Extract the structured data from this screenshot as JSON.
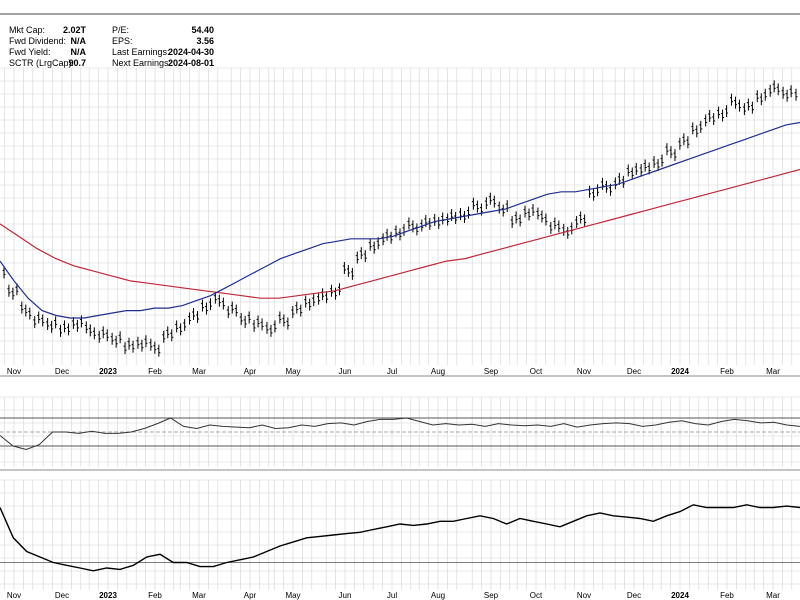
{
  "info": {
    "left": [
      {
        "label": "Mkt Cap:",
        "value": "2.02T"
      },
      {
        "label": "Fwd Dividend:",
        "value": "N/A"
      },
      {
        "label": "Fwd Yield:",
        "value": "N/A"
      },
      {
        "label": "SCTR (LrgCap):",
        "value": "90.7"
      }
    ],
    "right": [
      {
        "label": "P/E:",
        "value": "54.40"
      },
      {
        "label": "EPS:",
        "value": "3.56"
      },
      {
        "label": "Last Earnings:",
        "value": "2024-04-30"
      },
      {
        "label": "Next Earnings:",
        "value": "2024-08-01"
      }
    ]
  },
  "colors": {
    "price": "#000000",
    "ma_short": "#1f2f8f",
    "ma_long": "#c0283a",
    "grid": "#d4d4d4",
    "indicator": "#333333",
    "overbought": "#2e8b2e",
    "oversold": "#b03030"
  },
  "chart_data": [
    {
      "type": "line",
      "description_key": "price",
      "x_labels": [
        "Nov",
        "Dec",
        "2023",
        "Feb",
        "Mar",
        "Apr",
        "May",
        "Jun",
        "Jul",
        "Aug",
        "Sep",
        "Oct",
        "Nov",
        "Dec",
        "2024",
        "Feb",
        "Mar"
      ],
      "bold_labels": [
        "2023",
        "2024"
      ],
      "grid": true,
      "series": [
        {
          "key": "price",
          "values": [
            78,
            70,
            62,
            58,
            56,
            55,
            57,
            54,
            52,
            50,
            48,
            49,
            47,
            52,
            55,
            60,
            64,
            66,
            62,
            58,
            57,
            55,
            58,
            62,
            65,
            68,
            70,
            78,
            84,
            88,
            92,
            94,
            96,
            97,
            98,
            100,
            101,
            104,
            106,
            103,
            99,
            102,
            100,
            96,
            94,
            99,
            110,
            112,
            114,
            118,
            120,
            122,
            126,
            130,
            135,
            140,
            142,
            146,
            144,
            148,
            152,
            150,
            148
          ]
        },
        {
          "key": "ma_short",
          "values": [
            82,
            74,
            67,
            62,
            60,
            59,
            59,
            60,
            61,
            62,
            62,
            63,
            63,
            64,
            66,
            68,
            71,
            74,
            77,
            80,
            83,
            85,
            87,
            89,
            90,
            91,
            91,
            91,
            92,
            94,
            96,
            98,
            99,
            100,
            101,
            102,
            103,
            105,
            107,
            109,
            110,
            110,
            111,
            112,
            113,
            115,
            117,
            119,
            121,
            123,
            125,
            127,
            129,
            131,
            133,
            135,
            137,
            138
          ]
        },
        {
          "key": "ma_long",
          "values": [
            97,
            92,
            87,
            83,
            80,
            78,
            76,
            74,
            73,
            72,
            71,
            70,
            69,
            68,
            67,
            67,
            68,
            69,
            70,
            72,
            74,
            76,
            78,
            80,
            82,
            83,
            85,
            87,
            89,
            91,
            93,
            95,
            97,
            99,
            101,
            103,
            105,
            107,
            109,
            111,
            113,
            115,
            117,
            119
          ]
        }
      ]
    },
    {
      "type": "line",
      "description_key": "rsi",
      "levels": [
        70,
        50,
        30
      ],
      "ylim": [
        0,
        100
      ],
      "values": [
        45,
        30,
        25,
        32,
        50,
        50,
        48,
        51,
        48,
        48,
        50,
        55,
        62,
        70,
        58,
        55,
        60,
        58,
        57,
        56,
        60,
        55,
        56,
        60,
        58,
        62,
        63,
        60,
        65,
        68,
        68,
        70,
        65,
        60,
        62,
        60,
        61,
        58,
        62,
        60,
        59,
        60,
        58,
        62,
        57,
        60,
        62,
        63,
        62,
        58,
        60,
        64,
        66,
        62,
        60,
        65,
        68,
        66,
        63,
        64,
        60,
        58
      ]
    },
    {
      "type": "line",
      "description_key": "indicator",
      "values": [
        80,
        58,
        48,
        44,
        40,
        38,
        36,
        34,
        36,
        35,
        38,
        44,
        46,
        40,
        40,
        37,
        37,
        40,
        42,
        44,
        48,
        52,
        55,
        58,
        59,
        60,
        61,
        62,
        64,
        66,
        68,
        67,
        68,
        70,
        70,
        72,
        74,
        72,
        68,
        72,
        70,
        68,
        66,
        70,
        74,
        76,
        74,
        73,
        72,
        70,
        74,
        77,
        82,
        80,
        80,
        80,
        82,
        80,
        80,
        81,
        80
      ]
    }
  ]
}
